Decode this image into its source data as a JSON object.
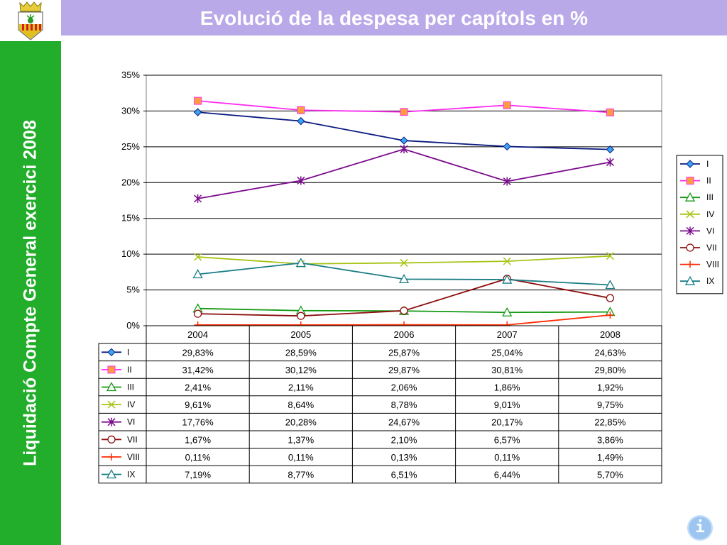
{
  "header": {
    "title": "Evolució de la despesa per capítols en %"
  },
  "sidebar": {
    "title": "Liquidació Compte General exercici 2008"
  },
  "info_button": {
    "label": "i"
  },
  "colors": {
    "title_bar": "#b9a9e9",
    "side_bar": "#22ad2a"
  },
  "chart_data": {
    "type": "line",
    "categories": [
      "2004",
      "2005",
      "2006",
      "2007",
      "2008"
    ],
    "ylim": [
      0,
      35
    ],
    "yticks": [
      "0%",
      "5%",
      "10%",
      "15%",
      "20%",
      "25%",
      "30%",
      "35%"
    ],
    "grid": true,
    "legend_position": "right",
    "series": [
      {
        "name": "I",
        "color": "#0a1a80",
        "marker": "diamond",
        "values": [
          29.83,
          28.59,
          25.87,
          25.04,
          24.63
        ],
        "labels": [
          "29,83%",
          "28,59%",
          "25,87%",
          "25,04%",
          "24,63%"
        ]
      },
      {
        "name": "II",
        "color": "#ff2cf2",
        "marker": "square",
        "values": [
          31.42,
          30.12,
          29.87,
          30.81,
          29.8
        ],
        "labels": [
          "31,42%",
          "30,12%",
          "29,87%",
          "30,81%",
          "29,80%"
        ]
      },
      {
        "name": "III",
        "color": "#139a13",
        "marker": "triangle",
        "values": [
          2.41,
          2.11,
          2.06,
          1.86,
          1.92
        ],
        "labels": [
          "2,41%",
          "2,11%",
          "2,06%",
          "1,86%",
          "1,92%"
        ]
      },
      {
        "name": "IV",
        "color": "#a6c414",
        "marker": "x",
        "values": [
          9.61,
          8.64,
          8.78,
          9.01,
          9.75
        ],
        "labels": [
          "9,61%",
          "8,64%",
          "8,78%",
          "9,01%",
          "9,75%"
        ]
      },
      {
        "name": "VI",
        "color": "#7a0a8c",
        "marker": "star",
        "values": [
          17.76,
          20.28,
          24.67,
          20.17,
          22.85
        ],
        "labels": [
          "17,76%",
          "20,28%",
          "24,67%",
          "20,17%",
          "22,85%"
        ]
      },
      {
        "name": "VII",
        "color": "#8c0e0e",
        "marker": "circle",
        "values": [
          1.67,
          1.37,
          2.1,
          6.57,
          3.86
        ],
        "labels": [
          "1,67%",
          "1,37%",
          "2,10%",
          "6,57%",
          "3,86%"
        ]
      },
      {
        "name": "VIII",
        "color": "#ff2a00",
        "marker": "plus",
        "values": [
          0.11,
          0.11,
          0.13,
          0.11,
          1.49
        ],
        "labels": [
          "0,11%",
          "0,11%",
          "0,13%",
          "0,11%",
          "1,49%"
        ]
      },
      {
        "name": "IX",
        "color": "#1a7c85",
        "marker": "triangle",
        "values": [
          7.19,
          8.77,
          6.51,
          6.44,
          5.7
        ],
        "labels": [
          "7,19%",
          "8,77%",
          "6,51%",
          "6,44%",
          "5,70%"
        ]
      }
    ]
  }
}
